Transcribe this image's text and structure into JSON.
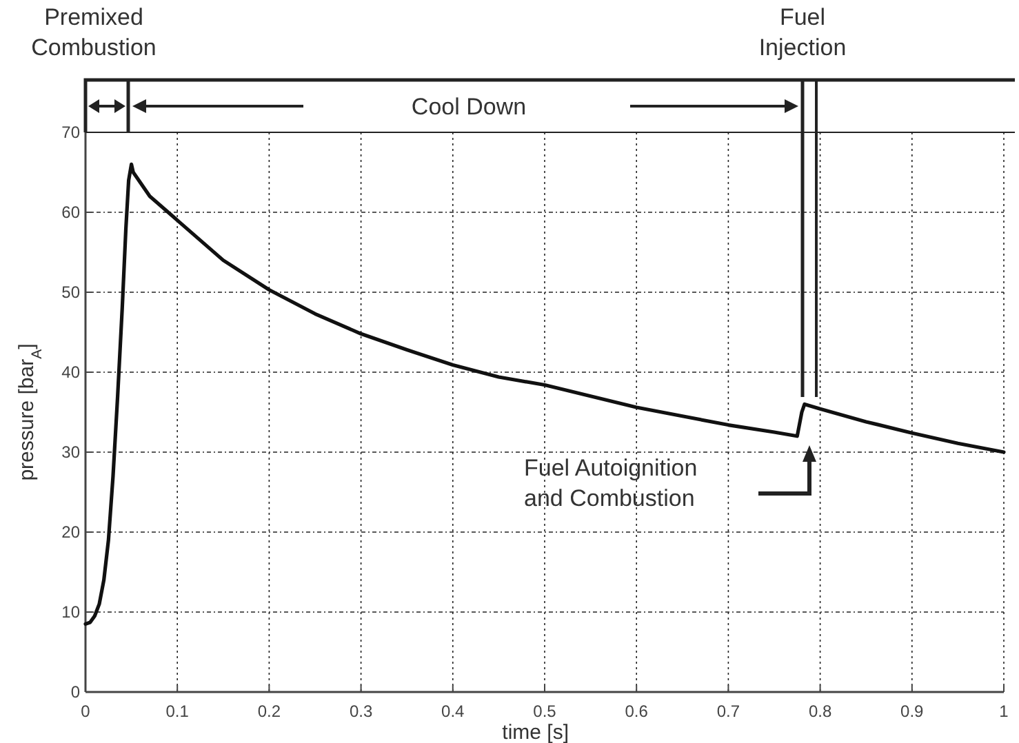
{
  "chart_data": {
    "type": "line",
    "xlabel": "time [s]",
    "ylabel": "pressure [bar$_{A}$]",
    "xlim": [
      0,
      1
    ],
    "ylim": [
      0,
      70
    ],
    "xticks": [
      0,
      0.1,
      0.2,
      0.3,
      0.4,
      0.5,
      0.6,
      0.7,
      0.8,
      0.9,
      1
    ],
    "yticks": [
      0,
      10,
      20,
      30,
      40,
      50,
      60,
      70
    ],
    "grid": true,
    "marker": "none",
    "line_style": "solid",
    "series": [
      {
        "color": "#111111",
        "x": [
          0,
          0.005,
          0.01,
          0.015,
          0.02,
          0.025,
          0.03,
          0.035,
          0.04,
          0.044,
          0.047,
          0.05,
          0.052,
          0.055,
          0.07,
          0.1,
          0.15,
          0.2,
          0.25,
          0.3,
          0.35,
          0.4,
          0.45,
          0.5,
          0.55,
          0.6,
          0.65,
          0.7,
          0.75,
          0.775,
          0.78,
          0.783,
          0.8,
          0.85,
          0.9,
          0.95,
          1
        ],
        "values": [
          8.5,
          8.7,
          9.5,
          11,
          14,
          19,
          27,
          37,
          48,
          58,
          64,
          66,
          65,
          64.5,
          62,
          59,
          54,
          50.3,
          47.3,
          44.8,
          42.8,
          40.9,
          39.4,
          38.4,
          37,
          35.6,
          34.5,
          33.4,
          32.5,
          32,
          35,
          36,
          35.4,
          33.8,
          32.4,
          31.1,
          30
        ]
      }
    ],
    "annotations": [
      "Premixed Combustion",
      "Cool Down",
      "Fuel Injection",
      "Fuel Autoignition and Combustion"
    ]
  }
}
